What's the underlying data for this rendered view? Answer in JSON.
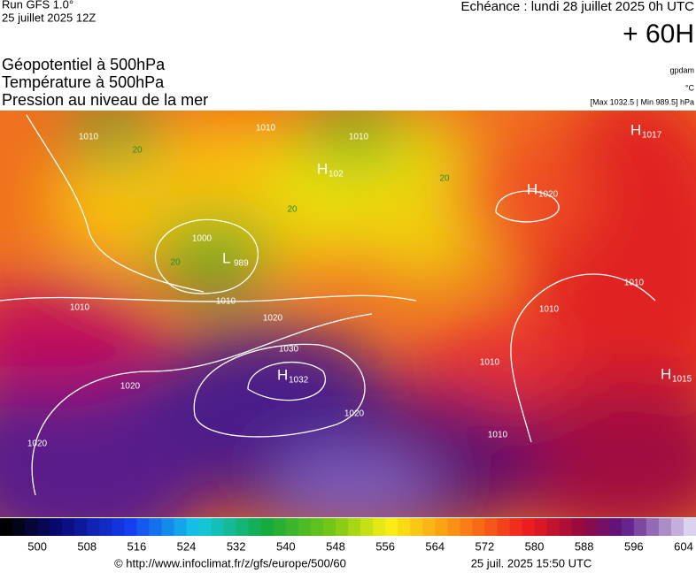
{
  "header": {
    "run": "Run GFS 1.0°",
    "run_date": "25 juillet 2025 12Z",
    "valid": "Echéance : lundi 28 juillet 2025 0h UTC",
    "lead": "+ 60H",
    "fields": [
      "Géopotentiel à 500hPa",
      "Température à 500hPa",
      "Pression au niveau de la mer"
    ],
    "units": [
      "gpdam",
      "°C",
      "[Max 1032.5 | Min 989.5] hPa"
    ]
  },
  "centers": [
    {
      "kind": "H",
      "value": "1017"
    },
    {
      "kind": "H",
      "value": "1020"
    },
    {
      "kind": "H",
      "value": "102"
    },
    {
      "kind": "L",
      "value": "989"
    },
    {
      "kind": "H",
      "value": "1032"
    },
    {
      "kind": "H",
      "value": "1015"
    }
  ],
  "isobar_labels": [
    "1010",
    "1010",
    "1010",
    "1000",
    "1010",
    "1020",
    "1030",
    "1020",
    "1020",
    "1020",
    "1010",
    "1010",
    "1010",
    "1010",
    "1010"
  ],
  "temperature_labels": [
    "20",
    "20",
    "20",
    "20"
  ],
  "colorbar": {
    "lim": [
      494,
      606
    ],
    "ticks": [
      500,
      508,
      516,
      524,
      532,
      540,
      548,
      556,
      564,
      572,
      580,
      588,
      596,
      604
    ]
  },
  "footer": {
    "source": "© http://www.infoclimat.fr/z/gfs/europe/500/60",
    "generated": "25 juil. 2025 15:50 UTC"
  }
}
